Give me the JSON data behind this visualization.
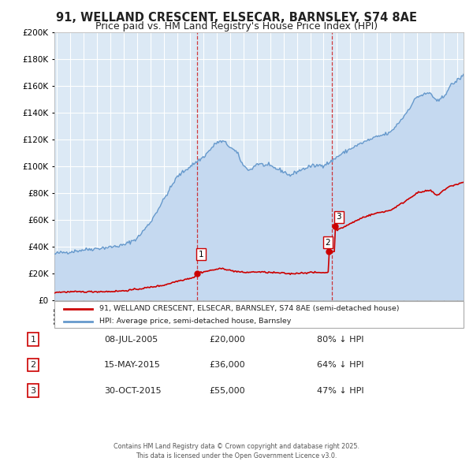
{
  "title": "91, WELLAND CRESCENT, ELSECAR, BARNSLEY, S74 8AE",
  "subtitle": "Price paid vs. HM Land Registry's House Price Index (HPI)",
  "title_fontsize": 10.5,
  "subtitle_fontsize": 9,
  "background_color": "#ffffff",
  "plot_bg_color": "#dce9f5",
  "grid_color": "#ffffff",
  "red_color": "#cc0000",
  "blue_color": "#6699cc",
  "blue_fill_color": "#c5d9f0",
  "ylim": [
    0,
    200000
  ],
  "yticks": [
    0,
    20000,
    40000,
    60000,
    80000,
    100000,
    120000,
    140000,
    160000,
    180000,
    200000
  ],
  "xlim_start": 1994.8,
  "xlim_end": 2025.5,
  "transactions": [
    {
      "date_dec": 2005.52,
      "price": 20000,
      "label": "1"
    },
    {
      "date_dec": 2015.37,
      "price": 36000,
      "label": "2"
    },
    {
      "date_dec": 2015.83,
      "price": 55000,
      "label": "3"
    }
  ],
  "vlines": [
    2005.52,
    2015.6
  ],
  "legend_entries": [
    "91, WELLAND CRESCENT, ELSECAR, BARNSLEY, S74 8AE (semi-detached house)",
    "HPI: Average price, semi-detached house, Barnsley"
  ],
  "table_data": [
    {
      "num": "1",
      "date": "08-JUL-2005",
      "price": "£20,000",
      "hpi": "80% ↓ HPI"
    },
    {
      "num": "2",
      "date": "15-MAY-2015",
      "price": "£36,000",
      "hpi": "64% ↓ HPI"
    },
    {
      "num": "3",
      "date": "30-OCT-2015",
      "price": "£55,000",
      "hpi": "47% ↓ HPI"
    }
  ],
  "footer": "Contains HM Land Registry data © Crown copyright and database right 2025.\nThis data is licensed under the Open Government Licence v3.0."
}
